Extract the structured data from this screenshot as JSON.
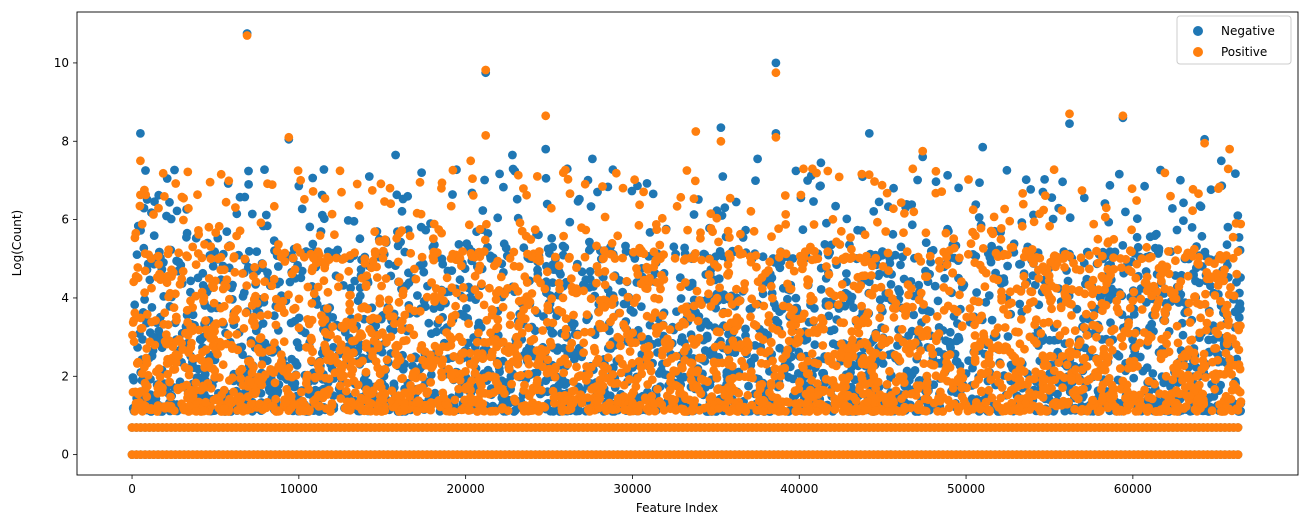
{
  "chart_data": {
    "type": "scatter",
    "title": "",
    "xlabel": "Feature Index",
    "ylabel": "Log(Count)",
    "xlim": [
      -3300,
      69900
    ],
    "ylim": [
      -0.52,
      11.3
    ],
    "xticks": [
      0,
      10000,
      20000,
      30000,
      40000,
      50000,
      60000
    ],
    "yticks": [
      0,
      2,
      4,
      6,
      8,
      10
    ],
    "grid": false,
    "legend_position": "top-right",
    "x_range": [
      0,
      66500
    ],
    "series": [
      {
        "name": "Negative",
        "color": "#1f77b4",
        "outliers": [
          [
            6900,
            10.75
          ],
          [
            21200,
            9.75
          ],
          [
            38600,
            10.0
          ],
          [
            38600,
            8.2
          ],
          [
            500,
            8.2
          ],
          [
            9400,
            8.05
          ],
          [
            24800,
            7.8
          ],
          [
            35300,
            8.35
          ],
          [
            44200,
            8.2
          ],
          [
            56200,
            8.45
          ],
          [
            59400,
            8.6
          ],
          [
            64300,
            8.05
          ],
          [
            15800,
            7.65
          ],
          [
            27600,
            7.55
          ],
          [
            37500,
            7.55
          ],
          [
            51000,
            7.85
          ],
          [
            47400,
            7.6
          ],
          [
            22800,
            7.65
          ],
          [
            41300,
            7.45
          ],
          [
            65300,
            7.5
          ]
        ]
      },
      {
        "name": "Positive",
        "color": "#ff7f0e",
        "outliers": [
          [
            6900,
            10.7
          ],
          [
            21200,
            9.82
          ],
          [
            38600,
            9.75
          ],
          [
            24800,
            8.65
          ],
          [
            56200,
            8.7
          ],
          [
            59400,
            8.65
          ],
          [
            9400,
            8.1
          ],
          [
            21200,
            8.15
          ],
          [
            33800,
            8.25
          ],
          [
            38600,
            8.1
          ],
          [
            35300,
            8.0
          ],
          [
            64300,
            7.95
          ],
          [
            500,
            7.5
          ],
          [
            47400,
            7.75
          ],
          [
            65800,
            7.8
          ],
          [
            20300,
            7.5
          ]
        ]
      }
    ]
  }
}
